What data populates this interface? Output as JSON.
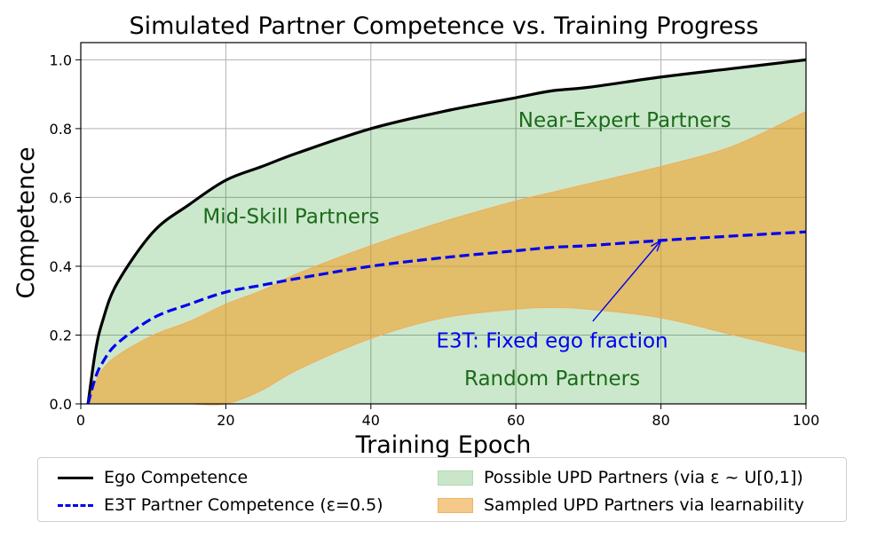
{
  "chart_data": {
    "type": "line",
    "title": "Simulated Partner Competence vs. Training Progress",
    "xlabel": "Training Epoch",
    "ylabel": "Competence",
    "xlim": [
      0,
      100
    ],
    "ylim": [
      0,
      1.05
    ],
    "xticks": [
      "0",
      "20",
      "40",
      "60",
      "80",
      "100"
    ],
    "yticks": [
      "0.0",
      "0.2",
      "0.4",
      "0.6",
      "0.8",
      "1.0"
    ],
    "grid": true,
    "legend_position": "bottom",
    "x": [
      1,
      2,
      3,
      5,
      10,
      15,
      20,
      25,
      30,
      40,
      50,
      60,
      65,
      70,
      80,
      90,
      100
    ],
    "series": [
      {
        "name": "Ego Competence",
        "style": "solid",
        "color": "#000000",
        "values": [
          0.0,
          0.15,
          0.24,
          0.35,
          0.5,
          0.58,
          0.65,
          0.69,
          0.73,
          0.8,
          0.85,
          0.89,
          0.91,
          0.92,
          0.95,
          0.975,
          1.0
        ]
      },
      {
        "name": "E3T Partner Competence (ε=0.5)",
        "style": "dashed",
        "color": "#0000ee",
        "values": [
          0.0,
          0.075,
          0.12,
          0.175,
          0.25,
          0.29,
          0.325,
          0.345,
          0.365,
          0.4,
          0.425,
          0.445,
          0.455,
          0.46,
          0.475,
          0.488,
          0.5
        ]
      }
    ],
    "areas": [
      {
        "name": "Possible UPD Partners (via ε ~ U[0,1])",
        "color": "#c9e6c9",
        "lower": [
          0,
          0,
          0,
          0,
          0,
          0,
          0,
          0,
          0,
          0,
          0,
          0,
          0,
          0,
          0,
          0,
          0
        ],
        "upper": [
          0.0,
          0.15,
          0.24,
          0.35,
          0.5,
          0.58,
          0.65,
          0.69,
          0.73,
          0.8,
          0.85,
          0.89,
          0.91,
          0.92,
          0.95,
          0.975,
          1.0
        ]
      },
      {
        "name": "Sampled UPD Partners via learnability",
        "color": "#f0b868",
        "upper": [
          0.0,
          0.06,
          0.1,
          0.14,
          0.2,
          0.24,
          0.29,
          0.33,
          0.38,
          0.46,
          0.53,
          0.59,
          0.615,
          0.64,
          0.69,
          0.75,
          0.85
        ],
        "lower": [
          0.0,
          0.0,
          0.0,
          0.0,
          0.0,
          0.0,
          0.0,
          0.04,
          0.1,
          0.19,
          0.25,
          0.275,
          0.28,
          0.275,
          0.25,
          0.2,
          0.15
        ]
      }
    ],
    "region_labels": [
      {
        "text": "Near-Expert Partners",
        "x": 75,
        "y": 0.825,
        "color": "#1a6b1a"
      },
      {
        "text": "Mid-Skill Partners",
        "x": 29,
        "y": 0.545,
        "color": "#1a6b1a"
      },
      {
        "text": "Random Partners",
        "x": 65,
        "y": 0.075,
        "color": "#1a6b1a"
      }
    ],
    "annotation": {
      "text": "E3T: Fixed ego fraction",
      "text_x": 65,
      "text_y": 0.185,
      "arrow_to_x": 80,
      "arrow_to_y": 0.475,
      "color": "#0000ee"
    }
  }
}
